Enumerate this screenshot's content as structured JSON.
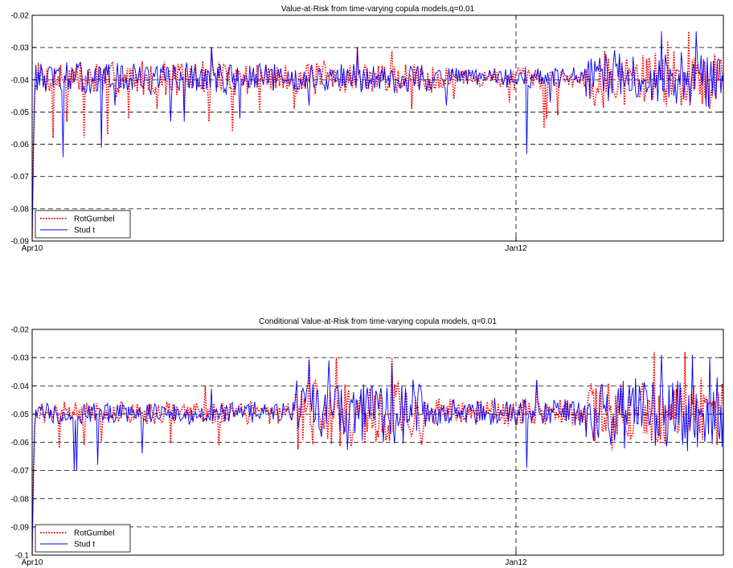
{
  "chart_data": [
    {
      "type": "line",
      "title": "Value-at-Risk from time-varying copula models,q=0.01",
      "xlabel": "",
      "ylabel": "",
      "ylim": [
        -0.09,
        -0.02
      ],
      "yticks": [
        -0.02,
        -0.03,
        -0.04,
        -0.05,
        -0.06,
        -0.07,
        -0.08,
        -0.09
      ],
      "ytick_labels": [
        "-0.02",
        "-0.03",
        "-0.04",
        "-0.05",
        "-0.06",
        "-0.07",
        "-0.08",
        "-0.09"
      ],
      "xticks": [
        "Apr10",
        "Jan12"
      ],
      "xtick_positions": [
        0,
        0.7
      ],
      "grid": true,
      "legend": "bottom-left",
      "base": -0.0395,
      "series": [
        {
          "name": "RotGumbel",
          "color": "#ff0000",
          "style": "dotted",
          "start": -0.09,
          "seed": 7,
          "spikes": [
            {
              "x": 0.03,
              "y": -0.058
            },
            {
              "x": 0.05,
              "y": -0.053
            },
            {
              "x": 0.075,
              "y": -0.058
            },
            {
              "x": 0.11,
              "y": -0.057
            },
            {
              "x": 0.14,
              "y": -0.052
            },
            {
              "x": 0.18,
              "y": -0.049
            },
            {
              "x": 0.22,
              "y": -0.05
            },
            {
              "x": 0.255,
              "y": -0.053
            },
            {
              "x": 0.26,
              "y": -0.03
            },
            {
              "x": 0.29,
              "y": -0.056
            },
            {
              "x": 0.33,
              "y": -0.05
            },
            {
              "x": 0.38,
              "y": -0.049
            },
            {
              "x": 0.47,
              "y": -0.03
            },
            {
              "x": 0.52,
              "y": -0.031
            },
            {
              "x": 0.55,
              "y": -0.049
            },
            {
              "x": 0.61,
              "y": -0.046
            },
            {
              "x": 0.69,
              "y": -0.047
            },
            {
              "x": 0.74,
              "y": -0.055
            },
            {
              "x": 0.745,
              "y": -0.052
            },
            {
              "x": 0.76,
              "y": -0.051
            },
            {
              "x": 0.92,
              "y": -0.028
            },
            {
              "x": 0.95,
              "y": -0.025
            },
            {
              "x": 0.98,
              "y": -0.049
            }
          ],
          "regimes": [
            {
              "from": 0.0,
              "to": 0.3,
              "amp": 0.005
            },
            {
              "from": 0.3,
              "to": 0.58,
              "amp": 0.0045
            },
            {
              "from": 0.58,
              "to": 0.8,
              "amp": 0.003
            },
            {
              "from": 0.8,
              "to": 1.0,
              "amp": 0.008
            }
          ]
        },
        {
          "name": "Stud t",
          "color": "#0000ff",
          "style": "solid",
          "start": -0.09,
          "seed": 13,
          "spikes": [
            {
              "x": 0.045,
              "y": -0.064
            },
            {
              "x": 0.1,
              "y": -0.061
            },
            {
              "x": 0.12,
              "y": -0.048
            },
            {
              "x": 0.2,
              "y": -0.053
            },
            {
              "x": 0.22,
              "y": -0.053
            },
            {
              "x": 0.26,
              "y": -0.03
            },
            {
              "x": 0.3,
              "y": -0.052
            },
            {
              "x": 0.4,
              "y": -0.048
            },
            {
              "x": 0.47,
              "y": -0.03
            },
            {
              "x": 0.6,
              "y": -0.048
            },
            {
              "x": 0.715,
              "y": -0.063
            },
            {
              "x": 0.75,
              "y": -0.047
            },
            {
              "x": 0.91,
              "y": -0.025
            },
            {
              "x": 0.96,
              "y": -0.025
            },
            {
              "x": 0.99,
              "y": -0.046
            }
          ],
          "regimes": [
            {
              "from": 0.0,
              "to": 0.3,
              "amp": 0.0045
            },
            {
              "from": 0.3,
              "to": 0.58,
              "amp": 0.004
            },
            {
              "from": 0.58,
              "to": 0.8,
              "amp": 0.003
            },
            {
              "from": 0.8,
              "to": 1.0,
              "amp": 0.0075
            }
          ]
        }
      ]
    },
    {
      "type": "line",
      "title": "Conditional Value-at-Risk from time-varying copula models, q=0.01",
      "xlabel": "",
      "ylabel": "",
      "ylim": [
        -0.1,
        -0.02
      ],
      "yticks": [
        -0.02,
        -0.03,
        -0.04,
        -0.05,
        -0.06,
        -0.07,
        -0.08,
        -0.09,
        -0.1
      ],
      "ytick_labels": [
        "-0.02",
        "-0.03",
        "-0.04",
        "-0.05",
        "-0.06",
        "-0.07",
        "-0.08",
        "-0.09",
        "-0.1"
      ],
      "xticks": [
        "Apr10",
        "Jan12"
      ],
      "xtick_positions": [
        0,
        0.7
      ],
      "grid": true,
      "legend": "bottom-left",
      "base": -0.0495,
      "series": [
        {
          "name": "RotGumbel",
          "color": "#ff0000",
          "style": "dotted",
          "start": -0.1,
          "seed": 21,
          "spikes": [
            {
              "x": 0.04,
              "y": -0.062
            },
            {
              "x": 0.075,
              "y": -0.061
            },
            {
              "x": 0.1,
              "y": -0.06
            },
            {
              "x": 0.2,
              "y": -0.06
            },
            {
              "x": 0.25,
              "y": -0.04
            },
            {
              "x": 0.27,
              "y": -0.061
            },
            {
              "x": 0.4,
              "y": -0.03
            },
            {
              "x": 0.44,
              "y": -0.03
            },
            {
              "x": 0.52,
              "y": -0.03
            },
            {
              "x": 0.55,
              "y": -0.058
            },
            {
              "x": 0.73,
              "y": -0.038
            },
            {
              "x": 0.9,
              "y": -0.028
            },
            {
              "x": 0.945,
              "y": -0.028
            },
            {
              "x": 0.97,
              "y": -0.059
            }
          ],
          "regimes": [
            {
              "from": 0.0,
              "to": 0.38,
              "amp": 0.0035
            },
            {
              "from": 0.38,
              "to": 0.57,
              "amp": 0.011
            },
            {
              "from": 0.57,
              "to": 0.8,
              "amp": 0.0045
            },
            {
              "from": 0.8,
              "to": 1.0,
              "amp": 0.011
            }
          ]
        },
        {
          "name": "Stud t",
          "color": "#0000ff",
          "style": "solid",
          "start": -0.1,
          "seed": 33,
          "spikes": [
            {
              "x": 0.06,
              "y": -0.07
            },
            {
              "x": 0.065,
              "y": -0.07
            },
            {
              "x": 0.095,
              "y": -0.068
            },
            {
              "x": 0.16,
              "y": -0.064
            },
            {
              "x": 0.26,
              "y": -0.041
            },
            {
              "x": 0.4,
              "y": -0.031
            },
            {
              "x": 0.43,
              "y": -0.031
            },
            {
              "x": 0.52,
              "y": -0.032
            },
            {
              "x": 0.715,
              "y": -0.069
            },
            {
              "x": 0.73,
              "y": -0.038
            },
            {
              "x": 0.91,
              "y": -0.029
            },
            {
              "x": 0.955,
              "y": -0.029
            },
            {
              "x": 0.98,
              "y": -0.03
            }
          ],
          "regimes": [
            {
              "from": 0.0,
              "to": 0.38,
              "amp": 0.0035
            },
            {
              "from": 0.38,
              "to": 0.57,
              "amp": 0.011
            },
            {
              "from": 0.57,
              "to": 0.8,
              "amp": 0.0045
            },
            {
              "from": 0.8,
              "to": 1.0,
              "amp": 0.011
            }
          ]
        }
      ]
    }
  ]
}
